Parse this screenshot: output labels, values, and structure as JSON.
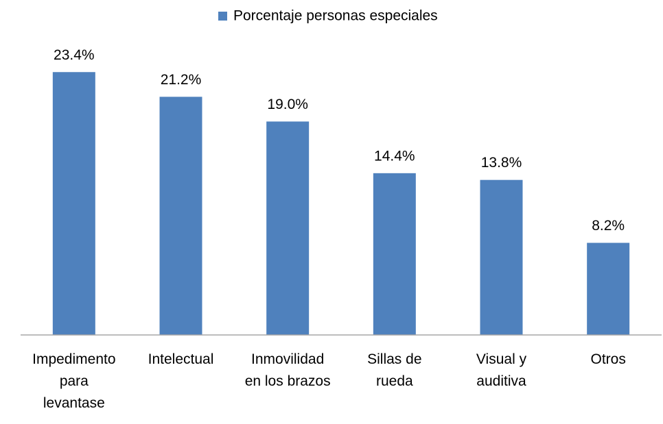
{
  "chart_data": {
    "type": "bar",
    "legend_label": "Porcentaje personas especiales",
    "categories": [
      "Impedimento\npara\nlevantase",
      "Intelectual",
      "Inmovilidad\nen los brazos",
      "Sillas de\nrueda",
      "Visual y\nauditiva",
      "Otros"
    ],
    "values": [
      23.4,
      21.2,
      19.0,
      14.4,
      13.8,
      8.2
    ],
    "value_labels": [
      "23.4%",
      "21.2%",
      "19.0%",
      "14.4%",
      "13.8%",
      "8.2%"
    ],
    "color": "#4f81bd",
    "ylim": [
      0,
      25
    ]
  }
}
